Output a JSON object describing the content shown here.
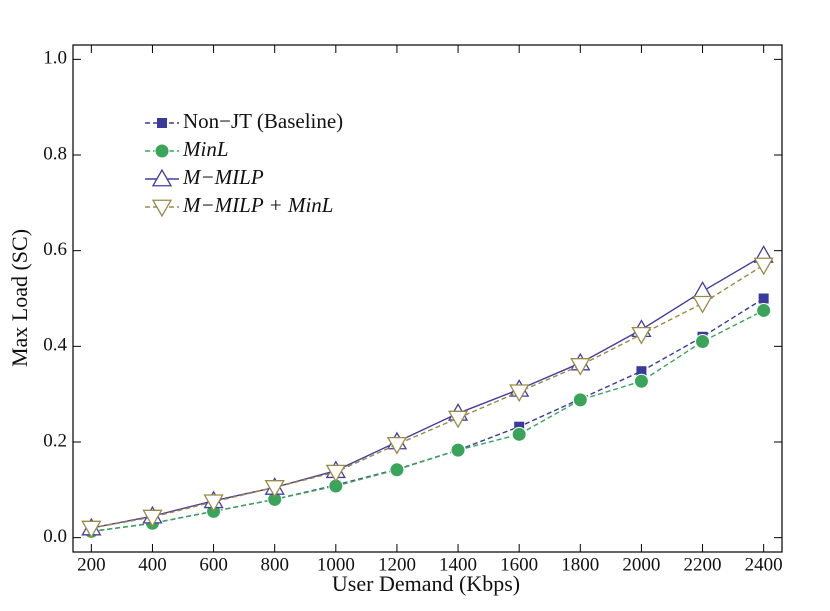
{
  "chart_data": {
    "type": "line",
    "xlabel": "User Demand (Kbps)",
    "ylabel": "Max Load (SC)",
    "x": [
      200,
      400,
      600,
      800,
      1000,
      1200,
      1400,
      1600,
      1800,
      2000,
      2200,
      2400
    ],
    "xlim": [
      140,
      2460
    ],
    "xticks": [
      200,
      400,
      600,
      800,
      1000,
      1200,
      1400,
      1600,
      1800,
      2000,
      2200,
      2400
    ],
    "ylim": [
      -0.03,
      1.03
    ],
    "yticks": [
      {
        "value": 0,
        "label": "0.0"
      },
      0.2,
      0.4,
      0.6,
      0.8,
      {
        "value": 1,
        "label": "1.0"
      }
    ],
    "legend": "upper left",
    "series": [
      {
        "name": "Non−JT (Baseline)",
        "color": "#3a3a9c",
        "marker": "square",
        "dashed": true,
        "italic": false,
        "values": [
          0.013,
          0.03,
          0.055,
          0.08,
          0.11,
          0.143,
          0.183,
          0.232,
          0.29,
          0.348,
          0.42,
          0.5
        ]
      },
      {
        "name": "MinL",
        "color": "#3aa55a",
        "marker": "circle",
        "dashed": true,
        "italic": true,
        "values": [
          0.013,
          0.03,
          0.055,
          0.08,
          0.108,
          0.142,
          0.183,
          0.216,
          0.288,
          0.327,
          0.41,
          0.475
        ]
      },
      {
        "name": "M−MILP",
        "color": "#463c9e",
        "marker": "triangle-up",
        "dashed": false,
        "italic": true,
        "values": [
          0.02,
          0.045,
          0.077,
          0.105,
          0.14,
          0.2,
          0.26,
          0.31,
          0.365,
          0.435,
          0.515,
          0.59
        ]
      },
      {
        "name": "M−MILP + MinL",
        "color": "#9a8a48",
        "marker": "triangle-down",
        "dashed": true,
        "italic": true,
        "values": [
          0.02,
          0.043,
          0.075,
          0.105,
          0.137,
          0.195,
          0.25,
          0.305,
          0.36,
          0.425,
          0.49,
          0.57
        ]
      }
    ]
  }
}
